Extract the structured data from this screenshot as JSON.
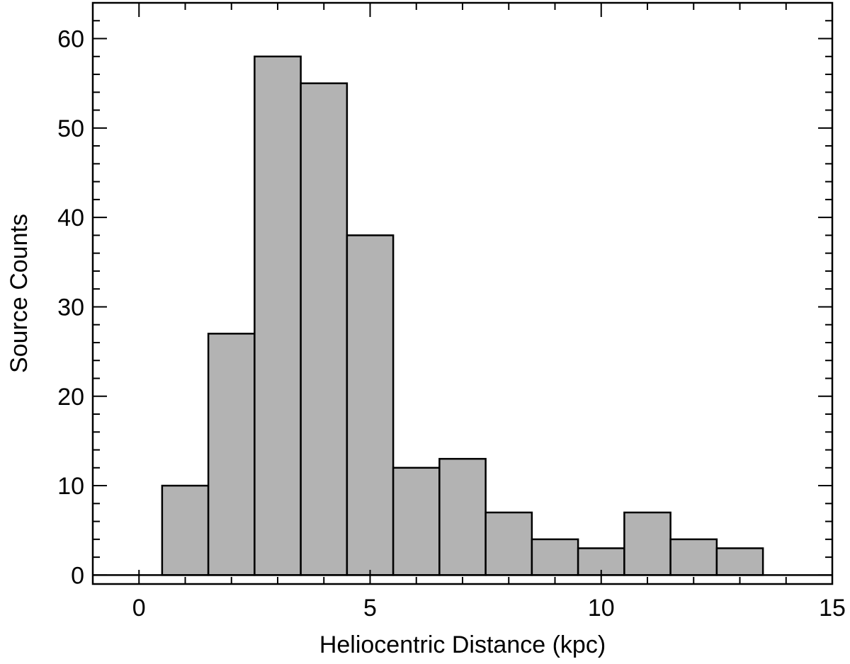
{
  "chart_data": {
    "type": "bar",
    "title": "",
    "xlabel": "Heliocentric Distance (kpc)",
    "ylabel": "Source Counts",
    "xlim": [
      -1,
      15
    ],
    "ylim": [
      -1,
      64
    ],
    "x_ticks": [
      0,
      5,
      10,
      15
    ],
    "y_ticks": [
      0,
      10,
      20,
      30,
      40,
      50,
      60
    ],
    "x_minor_step": 1,
    "y_minor_step": 2,
    "bin_width": 1,
    "bins": [
      {
        "center": 1,
        "value": 10
      },
      {
        "center": 2,
        "value": 27
      },
      {
        "center": 3,
        "value": 58
      },
      {
        "center": 4,
        "value": 55
      },
      {
        "center": 5,
        "value": 38
      },
      {
        "center": 6,
        "value": 12
      },
      {
        "center": 7,
        "value": 13
      },
      {
        "center": 8,
        "value": 7
      },
      {
        "center": 9,
        "value": 4
      },
      {
        "center": 10,
        "value": 3
      },
      {
        "center": 11,
        "value": 7
      },
      {
        "center": 12,
        "value": 4
      },
      {
        "center": 13,
        "value": 3
      }
    ],
    "bar_color": "#b3b3b3",
    "edge_color": "#000000",
    "grid": false,
    "legend": "none"
  }
}
